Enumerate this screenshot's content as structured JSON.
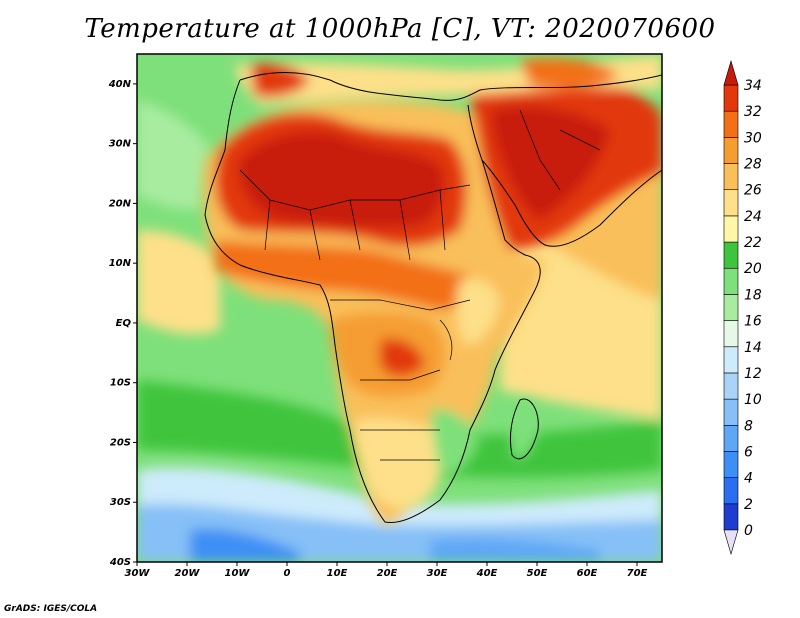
{
  "title": "Temperature at 1000hPa [C], VT: 2020070600",
  "footer": "GrADS: IGES/COLA",
  "map": {
    "lon_labels": [
      "30W",
      "20W",
      "10W",
      "0",
      "10E",
      "20E",
      "30E",
      "40E",
      "50E",
      "60E",
      "70E"
    ],
    "lat_labels": [
      "40N",
      "30N",
      "20N",
      "10N",
      "EQ",
      "10S",
      "20S",
      "30S",
      "40S"
    ],
    "lon_range": [
      -30,
      75
    ],
    "lat_range": [
      -40,
      45
    ],
    "ocean_color": "#7ee07a",
    "land_outline_color": "#000000"
  },
  "colorbar": {
    "levels": [
      "0",
      "2",
      "4",
      "6",
      "8",
      "10",
      "12",
      "14",
      "16",
      "18",
      "20",
      "22",
      "24",
      "26",
      "28",
      "30",
      "32",
      "34"
    ],
    "colors": [
      "#0a0a78",
      "#1e3ccf",
      "#2b6ef0",
      "#3d8ff5",
      "#5fa7f5",
      "#86c0f7",
      "#a9d4f8",
      "#cdebfb",
      "#e6f8e6",
      "#a8eca0",
      "#7ee07a",
      "#3fc43e",
      "#fff6a8",
      "#fde089",
      "#f9bf5a",
      "#f59d30",
      "#f37016",
      "#e2380c",
      "#c81a0a"
    ]
  }
}
